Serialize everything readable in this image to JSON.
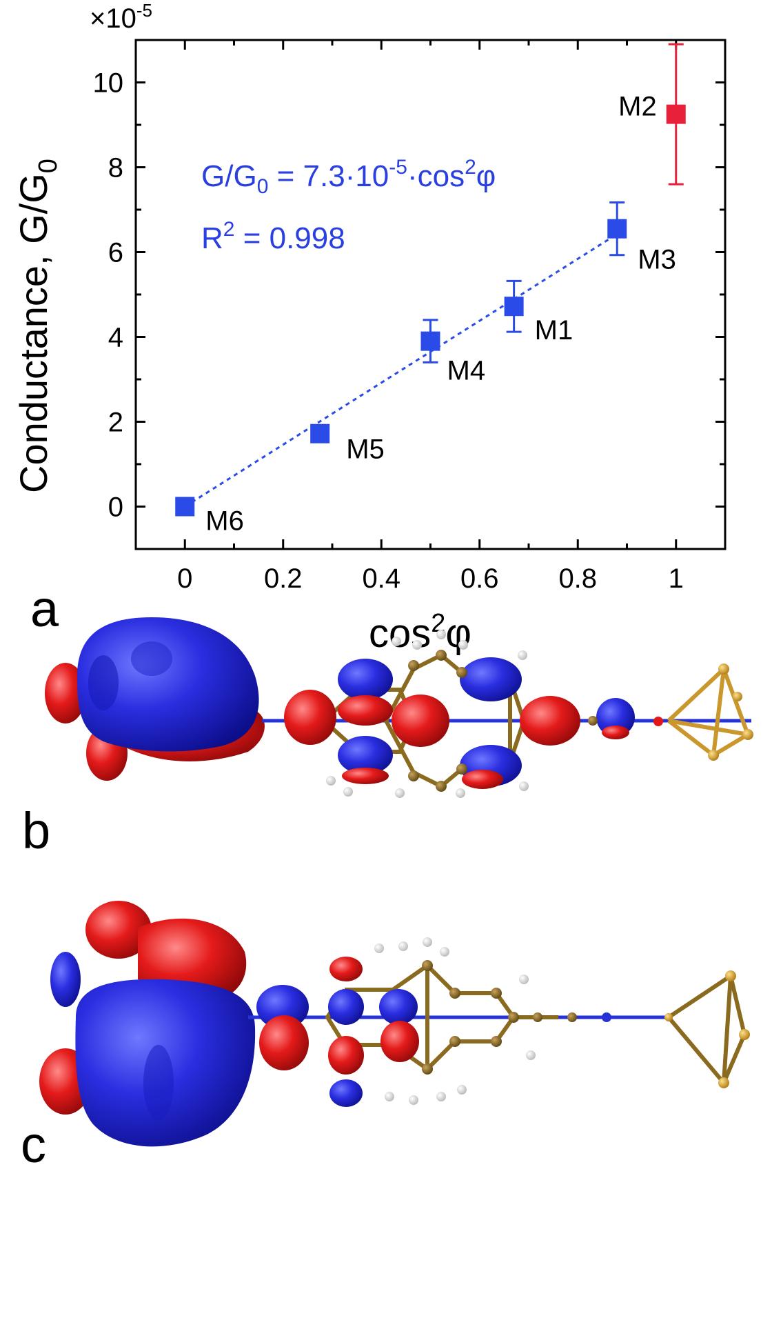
{
  "chart_data": {
    "type": "scatter",
    "xlabel_base": "cos",
    "xlabel_sup": "2",
    "xlabel_tail": "φ",
    "ylabel_main": "Conductance, G/G",
    "ylabel_sub": "0",
    "y_multiplier": "×10",
    "y_multiplier_exp": "-5",
    "xlim": [
      -0.1,
      1.1
    ],
    "ylim": [
      -1,
      11
    ],
    "x_ticks": [
      "0",
      "0.2",
      "0.4",
      "0.6",
      "0.8",
      "1"
    ],
    "y_ticks": [
      "0",
      "2",
      "4",
      "6",
      "8",
      "10"
    ],
    "points": [
      {
        "label": "M6",
        "x": 0.0,
        "y": 0.0,
        "err": 0.0,
        "color": "#2a4be8"
      },
      {
        "label": "M5",
        "x": 0.275,
        "y": 1.72,
        "err": 0.0,
        "color": "#2a4be8"
      },
      {
        "label": "M4",
        "x": 0.5,
        "y": 3.9,
        "err": 0.5,
        "color": "#2a4be8"
      },
      {
        "label": "M1",
        "x": 0.67,
        "y": 4.72,
        "err": 0.6,
        "color": "#2a4be8"
      },
      {
        "label": "M3",
        "x": 0.88,
        "y": 6.55,
        "err": 0.62,
        "color": "#2a4be8"
      },
      {
        "label": "M2",
        "x": 1.0,
        "y": 9.25,
        "err": 1.65,
        "color": "#e8203a"
      }
    ],
    "fit": {
      "slope": 7.3,
      "x_range": [
        0,
        0.88
      ],
      "color": "#2a4be8"
    },
    "equation": {
      "lhs_main": "G/G",
      "lhs_sub": "0",
      "rhs_main": " = 7.3·10",
      "rhs_exp": "-5",
      "rhs_tail": "·cos",
      "rhs_sup": "2",
      "rhs_end": "φ"
    },
    "r2": {
      "main": "R",
      "sup": "2",
      "tail": " = 0.998"
    }
  },
  "panels": {
    "a": "a",
    "b": "b",
    "c": "c"
  },
  "colors": {
    "lobe_blue": "#1c1fd0",
    "lobe_red": "#e01818",
    "carbon": "#8a6a1e",
    "hydrogen": "#f2f2f2",
    "gold": "#d4a73a",
    "nitrogen": "#2533d6"
  }
}
